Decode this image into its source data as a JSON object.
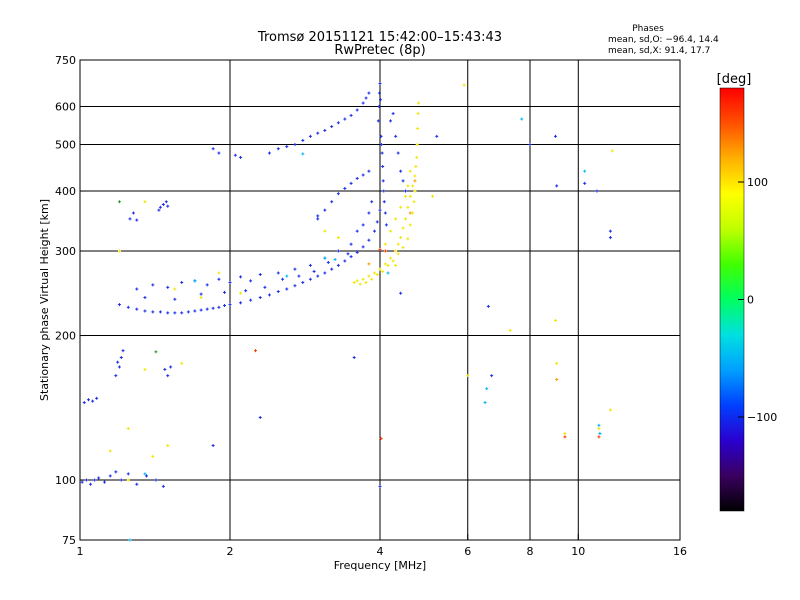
{
  "chart_data": {
    "type": "scatter",
    "title": "Tromsø 20151121 15:42:00–15:43:43",
    "subtitle": "RwPretec (8p)",
    "xlabel": "Frequency [MHz]",
    "ylabel": "Stationary phase Virtual Height [km]",
    "x_scale": "log",
    "y_scale": "log",
    "xlim": [
      1,
      16
    ],
    "ylim": [
      75,
      750
    ],
    "x_ticks": [
      1,
      2,
      4,
      6,
      8,
      10,
      16
    ],
    "x_tick_labels": [
      "1",
      "2",
      "4",
      "6",
      "8",
      "10",
      "16"
    ],
    "x_gridlines": [
      2,
      4,
      6,
      8,
      10
    ],
    "y_ticks": [
      75,
      100,
      200,
      300,
      400,
      500,
      600,
      750
    ],
    "y_tick_labels": [
      "75",
      "100",
      "200",
      "300",
      "400",
      "500",
      "600",
      "750"
    ],
    "y_gridlines": [
      100,
      200,
      300,
      400,
      500,
      600
    ],
    "grid": true,
    "stats": {
      "heading": "Phases",
      "line_o": "mean, sd,O: −96.4, 14.4",
      "line_x": "mean, sd,X:  91.4, 17.7"
    },
    "colorbar": {
      "label": "[deg]",
      "range": [
        -180,
        180
      ],
      "ticks": [
        -100,
        0,
        100
      ],
      "tick_labels": [
        "−100",
        "0",
        "100"
      ],
      "colors": [
        "#000000",
        "#3a0060",
        "#2a00d0",
        "#0040ff",
        "#00a0ff",
        "#00e0e0",
        "#00ff60",
        "#40ff00",
        "#c0ff00",
        "#ffff00",
        "#ffb000",
        "#ff5000",
        "#ff0000"
      ]
    },
    "series": [
      {
        "mode": "O",
        "mean_phase": -96.4,
        "color": "#1a2ee8",
        "points": [
          [
            1.01,
            99
          ],
          [
            1.03,
            100
          ],
          [
            1.05,
            98
          ],
          [
            1.07,
            100
          ],
          [
            1.09,
            101
          ],
          [
            1.12,
            99
          ],
          [
            1.15,
            102
          ],
          [
            1.18,
            104
          ],
          [
            1.21,
            100
          ],
          [
            1.25,
            103
          ],
          [
            1.3,
            98
          ],
          [
            1.36,
            102
          ],
          [
            1.42,
            100
          ],
          [
            1.47,
            97
          ],
          [
            1.02,
            145
          ],
          [
            1.04,
            147
          ],
          [
            1.06,
            146
          ],
          [
            1.08,
            148
          ],
          [
            1.18,
            165
          ],
          [
            1.2,
            172
          ],
          [
            1.21,
            180
          ],
          [
            1.22,
            186
          ],
          [
            1.19,
            176
          ],
          [
            1.26,
            350
          ],
          [
            1.28,
            360
          ],
          [
            1.3,
            348
          ],
          [
            1.45,
            370
          ],
          [
            1.47,
            375
          ],
          [
            1.49,
            380
          ],
          [
            1.44,
            365
          ],
          [
            1.5,
            372
          ],
          [
            1.5,
            165
          ],
          [
            1.48,
            170
          ],
          [
            1.52,
            172
          ],
          [
            1.2,
            232
          ],
          [
            1.25,
            229
          ],
          [
            1.3,
            227
          ],
          [
            1.35,
            225
          ],
          [
            1.4,
            224
          ],
          [
            1.45,
            224
          ],
          [
            1.5,
            223
          ],
          [
            1.55,
            223
          ],
          [
            1.6,
            223
          ],
          [
            1.65,
            224
          ],
          [
            1.7,
            225
          ],
          [
            1.75,
            226
          ],
          [
            1.8,
            227
          ],
          [
            1.85,
            228
          ],
          [
            1.9,
            229
          ],
          [
            1.95,
            231
          ],
          [
            2.0,
            232
          ],
          [
            2.1,
            234
          ],
          [
            2.2,
            237
          ],
          [
            2.3,
            240
          ],
          [
            2.4,
            243
          ],
          [
            2.5,
            247
          ],
          [
            2.6,
            250
          ],
          [
            2.7,
            254
          ],
          [
            2.8,
            258
          ],
          [
            2.9,
            262
          ],
          [
            3.0,
            266
          ],
          [
            3.1,
            270
          ],
          [
            3.2,
            275
          ],
          [
            3.3,
            280
          ],
          [
            3.4,
            286
          ],
          [
            3.5,
            292
          ],
          [
            3.6,
            298
          ],
          [
            3.7,
            306
          ],
          [
            3.8,
            316
          ],
          [
            3.9,
            330
          ],
          [
            3.95,
            345
          ],
          [
            4.0,
            365
          ],
          [
            1.3,
            250
          ],
          [
            1.4,
            255
          ],
          [
            1.5,
            252
          ],
          [
            1.6,
            258
          ],
          [
            1.7,
            260
          ],
          [
            1.8,
            255
          ],
          [
            1.9,
            262
          ],
          [
            2.0,
            258
          ],
          [
            2.1,
            265
          ],
          [
            2.2,
            260
          ],
          [
            2.3,
            268
          ],
          [
            2.5,
            270
          ],
          [
            2.7,
            275
          ],
          [
            2.9,
            280
          ],
          [
            3.1,
            290
          ],
          [
            3.3,
            300
          ],
          [
            3.5,
            310
          ],
          [
            3.6,
            330
          ],
          [
            3.7,
            340
          ],
          [
            3.8,
            360
          ],
          [
            3.85,
            380
          ],
          [
            1.35,
            240
          ],
          [
            1.55,
            238
          ],
          [
            1.75,
            244
          ],
          [
            1.95,
            246
          ],
          [
            2.15,
            248
          ],
          [
            2.35,
            252
          ],
          [
            2.55,
            262
          ],
          [
            2.75,
            266
          ],
          [
            2.95,
            272
          ],
          [
            3.15,
            284
          ],
          [
            3.45,
            296
          ],
          [
            3.0,
            350
          ],
          [
            3.1,
            365
          ],
          [
            3.2,
            380
          ],
          [
            3.3,
            395
          ],
          [
            3.4,
            405
          ],
          [
            3.5,
            415
          ],
          [
            3.6,
            425
          ],
          [
            3.7,
            432
          ],
          [
            3.8,
            440
          ],
          [
            2.4,
            480
          ],
          [
            2.5,
            490
          ],
          [
            2.6,
            495
          ],
          [
            2.7,
            500
          ],
          [
            2.8,
            510
          ],
          [
            2.9,
            520
          ],
          [
            3.0,
            528
          ],
          [
            3.1,
            535
          ],
          [
            3.2,
            545
          ],
          [
            3.3,
            555
          ],
          [
            3.4,
            565
          ],
          [
            3.5,
            575
          ],
          [
            3.6,
            590
          ],
          [
            3.7,
            610
          ],
          [
            3.75,
            625
          ],
          [
            3.8,
            640
          ],
          [
            2.05,
            475
          ],
          [
            2.1,
            470
          ],
          [
            1.9,
            480
          ],
          [
            1.85,
            490
          ],
          [
            3.97,
            560
          ],
          [
            3.98,
            600
          ],
          [
            3.99,
            640
          ],
          [
            4.0,
            670
          ],
          [
            4.02,
            520
          ],
          [
            4.04,
            480
          ],
          [
            4.05,
            450
          ],
          [
            4.06,
            420
          ],
          [
            4.03,
            500
          ],
          [
            4.01,
            620
          ],
          [
            4.07,
            400
          ],
          [
            4.08,
            380
          ],
          [
            4.1,
            360
          ],
          [
            4.12,
            340
          ],
          [
            4.2,
            560
          ],
          [
            4.25,
            580
          ],
          [
            4.3,
            520
          ],
          [
            4.35,
            480
          ],
          [
            4.4,
            440
          ],
          [
            4.45,
            420
          ],
          [
            4.5,
            400
          ],
          [
            2.3,
            135
          ],
          [
            4.0,
            97
          ],
          [
            4.4,
            245
          ],
          [
            5.2,
            520
          ],
          [
            6.6,
            230
          ],
          [
            6.7,
            165
          ],
          [
            9.0,
            520
          ],
          [
            9.05,
            410
          ],
          [
            10.3,
            415
          ],
          [
            10.9,
            400
          ],
          [
            11.6,
            320
          ],
          [
            11.6,
            330
          ],
          [
            1.85,
            118
          ],
          [
            3.0,
            355
          ],
          [
            3.55,
            180
          ],
          [
            8.0,
            500
          ]
        ]
      },
      {
        "mode": "X",
        "mean_phase": 91.4,
        "color": "#f2e600",
        "points": [
          [
            3.55,
            258
          ],
          [
            3.6,
            260
          ],
          [
            3.7,
            262
          ],
          [
            3.8,
            266
          ],
          [
            3.9,
            270
          ],
          [
            4.0,
            275
          ],
          [
            4.1,
            282
          ],
          [
            4.2,
            290
          ],
          [
            4.3,
            300
          ],
          [
            4.35,
            310
          ],
          [
            4.4,
            320
          ],
          [
            4.45,
            335
          ],
          [
            4.5,
            350
          ],
          [
            4.55,
            370
          ],
          [
            4.6,
            390
          ],
          [
            4.65,
            410
          ],
          [
            4.7,
            430
          ],
          [
            4.72,
            450
          ],
          [
            4.74,
            470
          ],
          [
            4.75,
            500
          ],
          [
            4.76,
            540
          ],
          [
            4.77,
            580
          ],
          [
            4.78,
            610
          ],
          [
            3.65,
            256
          ],
          [
            3.75,
            258
          ],
          [
            3.85,
            262
          ],
          [
            3.95,
            268
          ],
          [
            4.05,
            272
          ],
          [
            4.15,
            280
          ],
          [
            4.25,
            286
          ],
          [
            4.35,
            296
          ],
          [
            4.45,
            305
          ],
          [
            4.55,
            318
          ],
          [
            4.6,
            340
          ],
          [
            4.65,
            360
          ],
          [
            4.68,
            380
          ],
          [
            4.7,
            400
          ],
          [
            4.2,
            330
          ],
          [
            4.3,
            350
          ],
          [
            4.4,
            370
          ],
          [
            4.5,
            390
          ],
          [
            4.55,
            410
          ],
          [
            4.6,
            440
          ],
          [
            1.2,
            300
          ],
          [
            1.35,
            380
          ],
          [
            1.55,
            250
          ],
          [
            1.75,
            240
          ],
          [
            1.9,
            270
          ],
          [
            2.1,
            245
          ],
          [
            3.1,
            330
          ],
          [
            3.3,
            320
          ],
          [
            4.1,
            310
          ],
          [
            4.3,
            280
          ],
          [
            1.15,
            115
          ],
          [
            1.25,
            128
          ],
          [
            1.5,
            118
          ],
          [
            1.35,
            170
          ],
          [
            1.6,
            175
          ],
          [
            5.1,
            390
          ],
          [
            5.9,
            665
          ],
          [
            6.0,
            165
          ],
          [
            7.3,
            205
          ],
          [
            9.0,
            215
          ],
          [
            9.05,
            175
          ],
          [
            9.4,
            125
          ],
          [
            11.0,
            128
          ],
          [
            11.7,
            485
          ],
          [
            11.6,
            140
          ],
          [
            1.25,
            100
          ],
          [
            1.4,
            112
          ]
        ]
      },
      {
        "mode": "Other",
        "color": "#00b8f0",
        "points": [
          [
            1.26,
            75
          ],
          [
            1.35,
            103
          ],
          [
            2.8,
            478
          ],
          [
            3.1,
            290
          ],
          [
            4.15,
            270
          ],
          [
            6.5,
            145
          ],
          [
            6.55,
            155
          ],
          [
            7.7,
            565
          ],
          [
            10.3,
            440
          ],
          [
            11.0,
            130
          ],
          [
            11.05,
            125
          ],
          [
            1.7,
            260
          ],
          [
            2.6,
            266
          ],
          [
            3.25,
            288
          ]
        ]
      },
      {
        "mode": "Other",
        "color": "#ff3a00",
        "points": [
          [
            2.25,
            186
          ],
          [
            4.02,
            122
          ],
          [
            4.1,
            300
          ],
          [
            9.4,
            123
          ],
          [
            11.0,
            123
          ],
          [
            4.0,
            302
          ]
        ]
      },
      {
        "mode": "Other",
        "color": "#ff9900",
        "points": [
          [
            4.6,
            360
          ],
          [
            4.7,
            420
          ],
          [
            3.8,
            282
          ],
          [
            9.05,
            162
          ]
        ]
      },
      {
        "mode": "Other",
        "color": "#2a9a2a",
        "points": [
          [
            1.42,
            185
          ],
          [
            1.2,
            380
          ]
        ]
      }
    ]
  }
}
